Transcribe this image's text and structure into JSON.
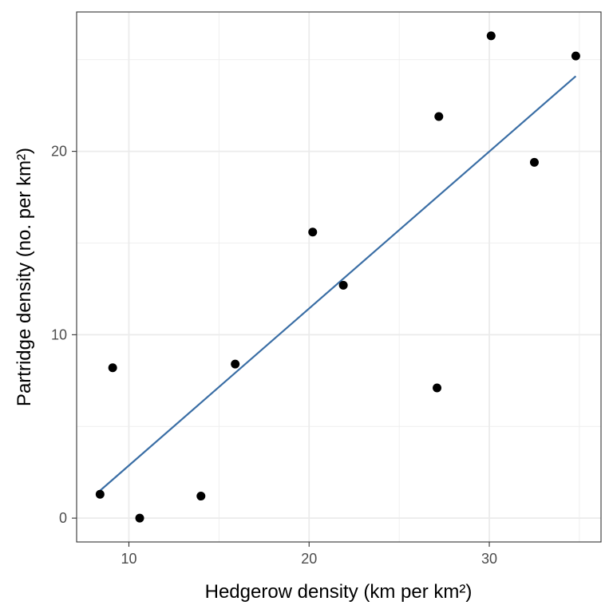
{
  "chart_data": {
    "type": "scatter",
    "title": "",
    "xlabel": "Hedgerow density (km per km²)",
    "ylabel": "Partridge density (no. per km²)",
    "xlim": [
      7.1,
      36.2
    ],
    "ylim": [
      -1.3,
      27.6
    ],
    "x_ticks": [
      10,
      20,
      30
    ],
    "y_ticks": [
      0,
      10,
      20
    ],
    "x_minor_ticks": [
      15,
      25,
      35
    ],
    "y_minor_ticks": [
      5,
      15,
      25
    ],
    "grid": true,
    "points": [
      {
        "x": 8.4,
        "y": 1.3
      },
      {
        "x": 9.1,
        "y": 8.2
      },
      {
        "x": 10.6,
        "y": 0.0
      },
      {
        "x": 14.0,
        "y": 1.2
      },
      {
        "x": 15.9,
        "y": 8.4
      },
      {
        "x": 20.2,
        "y": 15.6
      },
      {
        "x": 21.9,
        "y": 12.7
      },
      {
        "x": 27.1,
        "y": 7.1
      },
      {
        "x": 27.2,
        "y": 21.9
      },
      {
        "x": 30.1,
        "y": 26.3
      },
      {
        "x": 32.5,
        "y": 19.4
      },
      {
        "x": 34.8,
        "y": 25.2
      }
    ],
    "fit_line": {
      "x": [
        8.4,
        34.8
      ],
      "y": [
        1.5,
        24.1
      ]
    },
    "colors": {
      "points": "#000000",
      "fit_line": "#3a6ea5",
      "grid": "#ebebeb",
      "panel_border": "#333333"
    }
  }
}
